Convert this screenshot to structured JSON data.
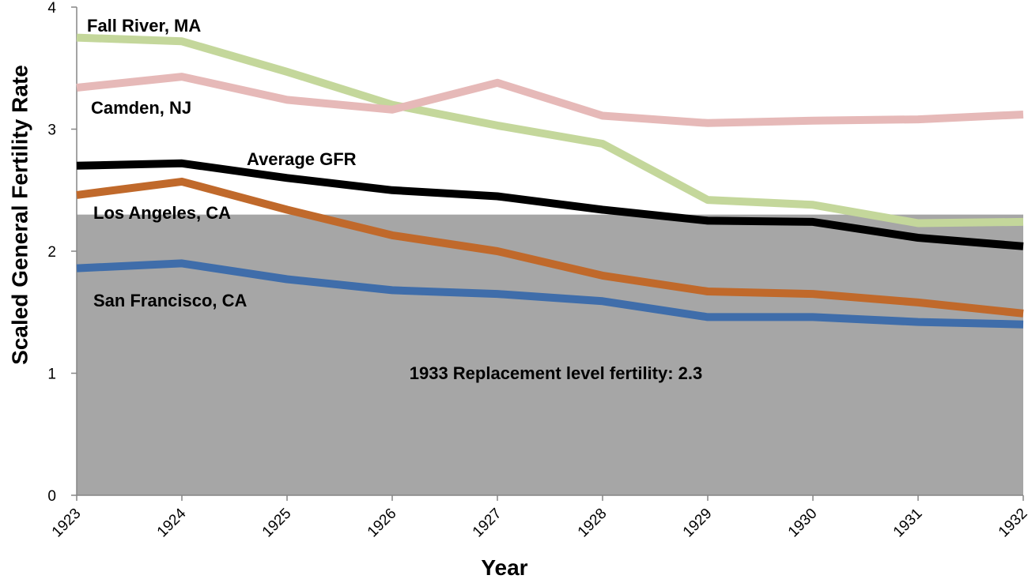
{
  "chart_data": {
    "type": "line",
    "title": "",
    "xlabel": "Year",
    "ylabel": "Scaled General Fertility Rate",
    "categories": [
      "1923",
      "1924",
      "1925",
      "1926",
      "1927",
      "1928",
      "1929",
      "1930",
      "1931",
      "1932"
    ],
    "ylim": [
      0,
      4
    ],
    "yticks": [
      0,
      1,
      2,
      3,
      4
    ],
    "ytick_labels": [
      "0",
      "1",
      "2",
      "3",
      "4"
    ],
    "grid": false,
    "legend": "none (series labeled directly on plot)",
    "band": {
      "label": "1933 Replacement level fertility: 2.3",
      "from": 0,
      "to": 2.3,
      "color": "#a6a6a6"
    },
    "series": [
      {
        "name": "Fall River, MA",
        "color": "#c4d79b",
        "values": [
          3.75,
          3.72,
          3.47,
          3.2,
          3.03,
          2.88,
          2.42,
          2.38,
          2.23,
          2.24
        ]
      },
      {
        "name": "Camden, NJ",
        "color": "#e6b9b8",
        "values": [
          3.34,
          3.43,
          3.24,
          3.16,
          3.38,
          3.11,
          3.05,
          3.07,
          3.08,
          3.12
        ]
      },
      {
        "name": "Average GFR",
        "color": "#000000",
        "values": [
          2.7,
          2.72,
          2.6,
          2.5,
          2.45,
          2.34,
          2.25,
          2.24,
          2.11,
          2.04
        ]
      },
      {
        "name": "Los Angeles, CA",
        "color": "#c0692b",
        "values": [
          2.46,
          2.57,
          2.34,
          2.13,
          2.0,
          1.8,
          1.67,
          1.65,
          1.58,
          1.49
        ]
      },
      {
        "name": "San Francisco, CA",
        "color": "#3f6daa",
        "values": [
          1.86,
          1.9,
          1.77,
          1.68,
          1.65,
          1.59,
          1.46,
          1.46,
          1.42,
          1.4
        ]
      }
    ]
  }
}
